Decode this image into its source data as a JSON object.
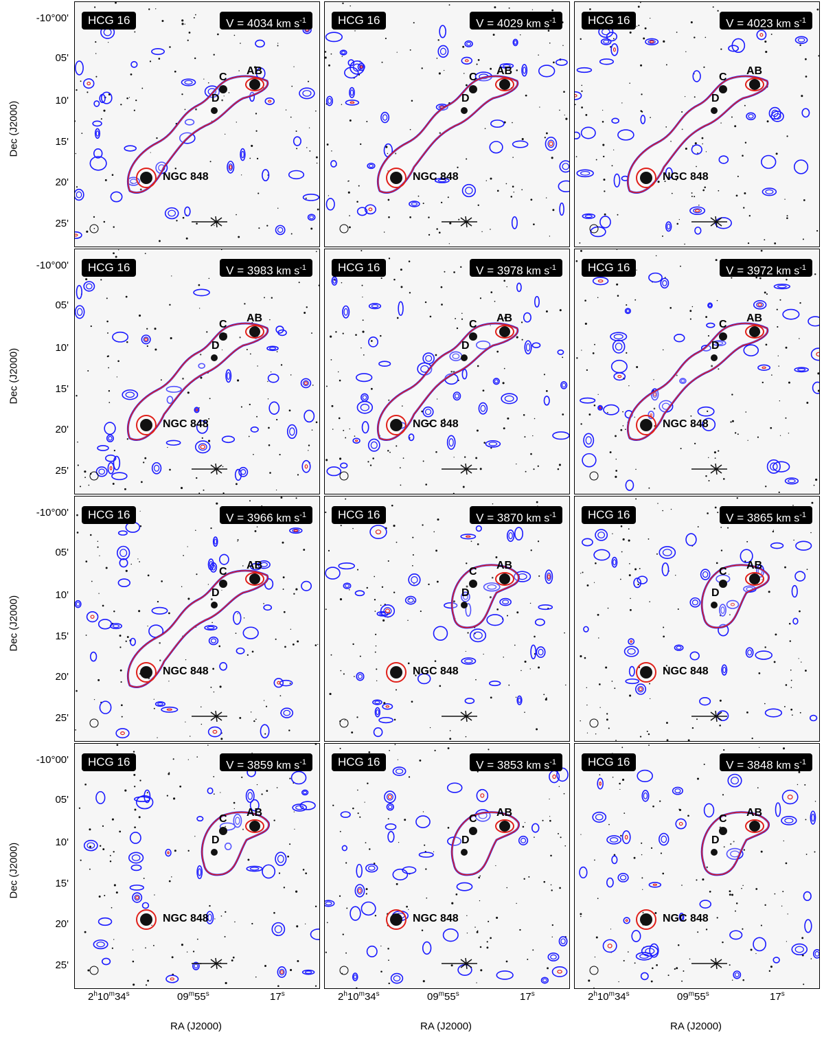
{
  "figure": {
    "group_label": "HCG 16",
    "velocity_prefix": "V = ",
    "velocity_unit": "km s",
    "velocity_unit_exp": "-1",
    "panels": [
      {
        "velocity": "4034"
      },
      {
        "velocity": "4029"
      },
      {
        "velocity": "4023"
      },
      {
        "velocity": "3983"
      },
      {
        "velocity": "3978"
      },
      {
        "velocity": "3972"
      },
      {
        "velocity": "3966"
      },
      {
        "velocity": "3870"
      },
      {
        "velocity": "3865"
      },
      {
        "velocity": "3859"
      },
      {
        "velocity": "3853"
      },
      {
        "velocity": "3848"
      }
    ],
    "galaxy_labels": {
      "ab": "AB",
      "c": "C",
      "d": "D",
      "ngc": "NGC 848"
    },
    "y_axis": {
      "label": "Dec (J2000)",
      "ticks": [
        "-10°00'",
        "05'",
        "10'",
        "15'",
        "20'",
        "25'"
      ]
    },
    "x_axis": {
      "label": "RA (J2000)",
      "tick1_main": "2",
      "tick1_h": "h",
      "tick1_mid": "10",
      "tick1_m": "m",
      "tick1_end": "34",
      "tick1_s": "s",
      "tick2_main": "09",
      "tick2_m": "m",
      "tick2_end": "55",
      "tick2_s": "s",
      "tick3_main": "17",
      "tick3_s": "s"
    },
    "colors": {
      "contour_low": "#1a1aff",
      "contour_high": "#e0201a",
      "background": "#f6f6f6"
    }
  }
}
